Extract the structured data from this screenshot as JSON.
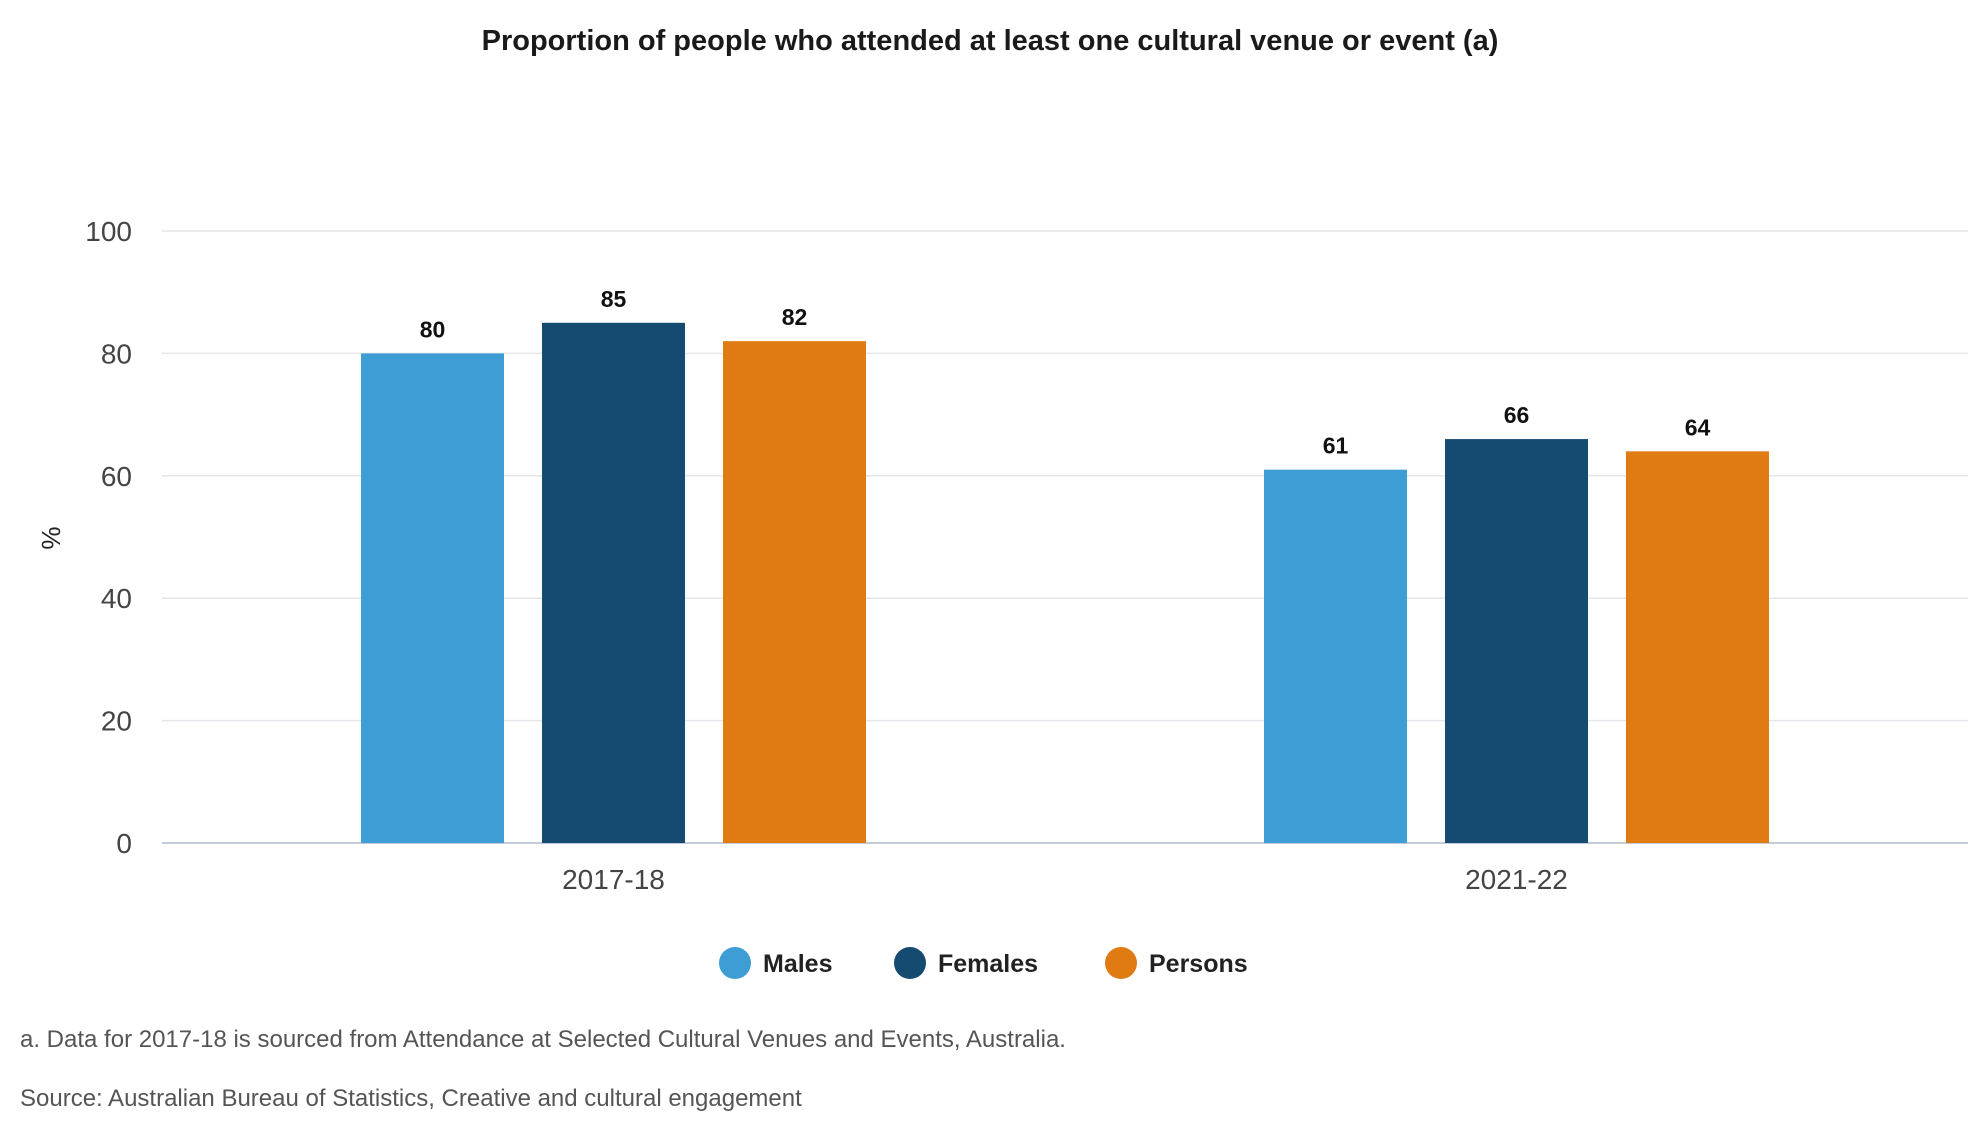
{
  "chart_data": {
    "type": "bar",
    "title": "Proportion of people who attended at least one cultural venue or event (a)",
    "xlabel": "",
    "ylabel": "%",
    "categories": [
      "2017-18",
      "2021-22"
    ],
    "series": [
      {
        "name": "Males",
        "color": "#3e9dd4",
        "values": [
          80,
          61
        ]
      },
      {
        "name": "Females",
        "color": "#154a71",
        "values": [
          85,
          66
        ]
      },
      {
        "name": "Persons",
        "color": "#e07b14",
        "values": [
          82,
          64
        ]
      }
    ],
    "data_labels": [
      [
        "80",
        "61"
      ],
      [
        "85",
        "66"
      ],
      [
        "82",
        "64"
      ]
    ],
    "ylim": [
      0,
      100
    ],
    "yticks": [
      0,
      20,
      40,
      60,
      80,
      100
    ],
    "ytick_labels": [
      "0",
      "20",
      "40",
      "60",
      "80",
      "100"
    ],
    "grid": true,
    "legend_position": "bottom-center"
  },
  "footnotes": {
    "note": "a. Data for 2017-18 is sourced from Attendance at Selected Cultural Venues and Events, Australia.",
    "source": "Source: Australian Bureau of Statistics, Creative and cultural engagement"
  }
}
